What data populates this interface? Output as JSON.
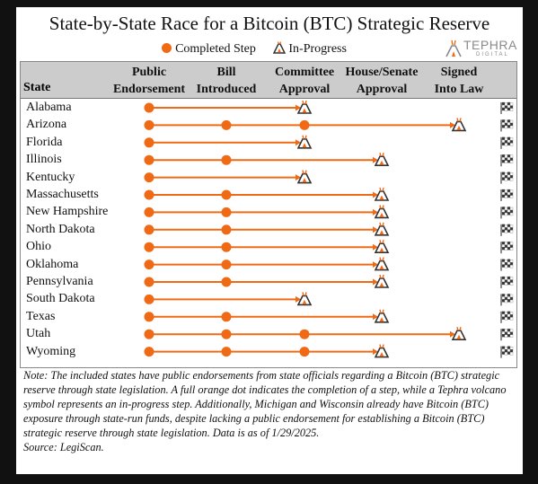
{
  "title": "State-by-State Race for a Bitcoin (BTC) Strategic Reserve",
  "legend": {
    "completed": "Completed Step",
    "in_progress": "In-Progress"
  },
  "logo": {
    "word": "TEPHRA",
    "sub": "DIGITAL"
  },
  "colors": {
    "accent": "#f06a15",
    "header_bg": "#cccccc",
    "volcano": "#333333"
  },
  "chart_data": {
    "type": "table",
    "title": "State-by-State Race for a Bitcoin (BTC) Strategic Reserve",
    "row_label": "State",
    "stages": [
      {
        "line1": "Public",
        "line2": "Endorsement"
      },
      {
        "line1": "Bill",
        "line2": "Introduced"
      },
      {
        "line1": "Committee",
        "line2": "Approval"
      },
      {
        "line1": "House/Senate",
        "line2": "Approval"
      },
      {
        "line1": "Signed",
        "line2": "Into Law"
      }
    ],
    "states": [
      {
        "name": "Alabama",
        "completed": 1,
        "in_progress": 2
      },
      {
        "name": "Arizona",
        "completed": 3,
        "in_progress": 4
      },
      {
        "name": "Florida",
        "completed": 1,
        "in_progress": 2
      },
      {
        "name": "Illinois",
        "completed": 2,
        "in_progress": 3
      },
      {
        "name": "Kentucky",
        "completed": 1,
        "in_progress": 2
      },
      {
        "name": "Massachusetts",
        "completed": 2,
        "in_progress": 3
      },
      {
        "name": "New Hampshire",
        "completed": 2,
        "in_progress": 3
      },
      {
        "name": "North Dakota",
        "completed": 2,
        "in_progress": 3
      },
      {
        "name": "Ohio",
        "completed": 2,
        "in_progress": 3
      },
      {
        "name": "Oklahoma",
        "completed": 2,
        "in_progress": 3
      },
      {
        "name": "Pennsylvania",
        "completed": 2,
        "in_progress": 3
      },
      {
        "name": "South Dakota",
        "completed": 1,
        "in_progress": 2
      },
      {
        "name": "Texas",
        "completed": 2,
        "in_progress": 3
      },
      {
        "name": "Utah",
        "completed": 3,
        "in_progress": 4
      },
      {
        "name": "Wyoming",
        "completed": 3,
        "in_progress": 3
      }
    ],
    "finish_icon": "checkered-flag-icon"
  },
  "note": "Note: The included states have public endorsements from state officials regarding a Bitcoin (BTC) strategic reserve through state legislation. A full orange dot indicates the completion of a step, while a Tephra volcano symbol represents an in-progress step. Additionally, Michigan and Wisconsin already have Bitcoin (BTC) exposure through state-run funds, despite lacking a public endorsement for establishing a Bitcoin (BTC) strategic reserve through state legislation. Data is as of 1/29/2025.",
  "source": "Source: LegiScan."
}
